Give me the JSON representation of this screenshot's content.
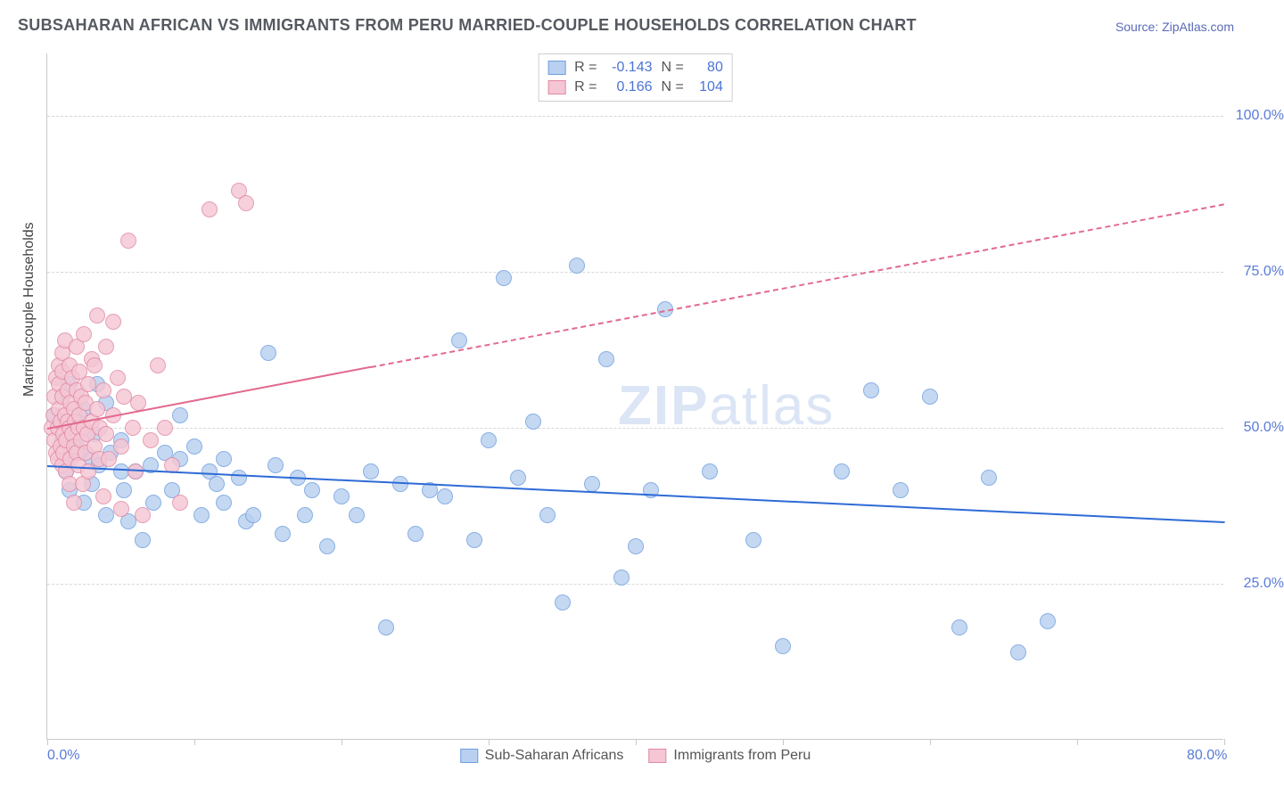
{
  "title": "SUBSAHARAN AFRICAN VS IMMIGRANTS FROM PERU MARRIED-COUPLE HOUSEHOLDS CORRELATION CHART",
  "source": "Source: ZipAtlas.com",
  "ylabel": "Married-couple Households",
  "watermark_a": "ZIP",
  "watermark_b": "atlas",
  "chart": {
    "type": "scatter",
    "background_color": "#ffffff",
    "grid_color": "#d8d8d8",
    "axis_color": "#c9c9c9",
    "xlim": [
      0,
      80
    ],
    "ylim": [
      0,
      110
    ],
    "x_ticks": [
      0,
      10,
      20,
      30,
      40,
      50,
      60,
      70,
      80
    ],
    "x_labels": {
      "0": "0.0%",
      "80": "80.0%"
    },
    "y_gridlines": [
      25,
      50,
      75,
      100
    ],
    "y_labels": {
      "25": "25.0%",
      "50": "50.0%",
      "75": "75.0%",
      "100": "100.0%"
    },
    "point_radius": 9,
    "title_fontsize": 18,
    "title_color": "#555960",
    "label_fontsize": 16,
    "tick_color": "#5a7bd8",
    "series": [
      {
        "name": "Sub-Saharan Africans",
        "fill": "#b9d0f0",
        "stroke": "#6f9fe0",
        "line_color": "#2e6bd6",
        "R": "-0.143",
        "N": "80",
        "trend": {
          "x1": 0,
          "y1": 44,
          "x2": 80,
          "y2": 35,
          "dashed": false
        },
        "points": [
          [
            0.5,
            52
          ],
          [
            1,
            48
          ],
          [
            1,
            50
          ],
          [
            1,
            55
          ],
          [
            1.3,
            45
          ],
          [
            1.3,
            43
          ],
          [
            1.5,
            57
          ],
          [
            1.5,
            40
          ],
          [
            2,
            47
          ],
          [
            2,
            51
          ],
          [
            2.2,
            46
          ],
          [
            2.5,
            53
          ],
          [
            2.5,
            38
          ],
          [
            3,
            45
          ],
          [
            3,
            41
          ],
          [
            3.2,
            49
          ],
          [
            3.4,
            57
          ],
          [
            3.5,
            44
          ],
          [
            4,
            54
          ],
          [
            4,
            36
          ],
          [
            4.3,
            46
          ],
          [
            5,
            43
          ],
          [
            5,
            48
          ],
          [
            5.2,
            40
          ],
          [
            5.5,
            35
          ],
          [
            6,
            43
          ],
          [
            6.5,
            32
          ],
          [
            7,
            44
          ],
          [
            7.2,
            38
          ],
          [
            8,
            46
          ],
          [
            8.5,
            40
          ],
          [
            9,
            45
          ],
          [
            9,
            52
          ],
          [
            10,
            47
          ],
          [
            10.5,
            36
          ],
          [
            11,
            43
          ],
          [
            11.5,
            41
          ],
          [
            12,
            45
          ],
          [
            12,
            38
          ],
          [
            13,
            42
          ],
          [
            13.5,
            35
          ],
          [
            14,
            36
          ],
          [
            15,
            62
          ],
          [
            15.5,
            44
          ],
          [
            16,
            33
          ],
          [
            17,
            42
          ],
          [
            17.5,
            36
          ],
          [
            18,
            40
          ],
          [
            19,
            31
          ],
          [
            20,
            39
          ],
          [
            21,
            36
          ],
          [
            22,
            43
          ],
          [
            23,
            18
          ],
          [
            24,
            41
          ],
          [
            25,
            33
          ],
          [
            26,
            40
          ],
          [
            27,
            39
          ],
          [
            28,
            64
          ],
          [
            29,
            32
          ],
          [
            30,
            48
          ],
          [
            31,
            74
          ],
          [
            32,
            42
          ],
          [
            33,
            51
          ],
          [
            34,
            36
          ],
          [
            35,
            22
          ],
          [
            36,
            76
          ],
          [
            37,
            41
          ],
          [
            38,
            61
          ],
          [
            39,
            26
          ],
          [
            40,
            31
          ],
          [
            41,
            40
          ],
          [
            42,
            69
          ],
          [
            45,
            43
          ],
          [
            48,
            32
          ],
          [
            50,
            15
          ],
          [
            54,
            43
          ],
          [
            56,
            56
          ],
          [
            58,
            40
          ],
          [
            60,
            55
          ],
          [
            62,
            18
          ],
          [
            64,
            42
          ],
          [
            66,
            14
          ],
          [
            68,
            19
          ]
        ]
      },
      {
        "name": "Immigrants from Peru",
        "fill": "#f5c6d4",
        "stroke": "#e08aa5",
        "line_color": "#e26a8e",
        "R": "0.166",
        "N": "104",
        "trend": {
          "x1": 0,
          "y1": 50,
          "x2": 80,
          "y2": 86,
          "dashed_from": 22
        },
        "points": [
          [
            0.3,
            50
          ],
          [
            0.4,
            52
          ],
          [
            0.5,
            48
          ],
          [
            0.5,
            55
          ],
          [
            0.6,
            46
          ],
          [
            0.6,
            58
          ],
          [
            0.7,
            45
          ],
          [
            0.7,
            50
          ],
          [
            0.8,
            53
          ],
          [
            0.8,
            57
          ],
          [
            0.8,
            60
          ],
          [
            0.9,
            47
          ],
          [
            0.9,
            51
          ],
          [
            1.0,
            44
          ],
          [
            1.0,
            55
          ],
          [
            1.0,
            59
          ],
          [
            1.0,
            62
          ],
          [
            1.1,
            46
          ],
          [
            1.1,
            49
          ],
          [
            1.2,
            52
          ],
          [
            1.2,
            64
          ],
          [
            1.3,
            48
          ],
          [
            1.3,
            43
          ],
          [
            1.4,
            51
          ],
          [
            1.4,
            56
          ],
          [
            1.5,
            41
          ],
          [
            1.5,
            60
          ],
          [
            1.5,
            50
          ],
          [
            1.6,
            54
          ],
          [
            1.6,
            45
          ],
          [
            1.7,
            58
          ],
          [
            1.7,
            49
          ],
          [
            1.8,
            53
          ],
          [
            1.8,
            47
          ],
          [
            1.8,
            38
          ],
          [
            1.9,
            51
          ],
          [
            2.0,
            46
          ],
          [
            2.0,
            56
          ],
          [
            2.0,
            63
          ],
          [
            2.1,
            44
          ],
          [
            2.1,
            50
          ],
          [
            2.2,
            59
          ],
          [
            2.2,
            52
          ],
          [
            2.3,
            48
          ],
          [
            2.3,
            55
          ],
          [
            2.4,
            41
          ],
          [
            2.5,
            65
          ],
          [
            2.5,
            50
          ],
          [
            2.6,
            46
          ],
          [
            2.6,
            54
          ],
          [
            2.7,
            49
          ],
          [
            2.8,
            57
          ],
          [
            2.8,
            43
          ],
          [
            3.0,
            51
          ],
          [
            3.0,
            61
          ],
          [
            3.2,
            60
          ],
          [
            3.2,
            47
          ],
          [
            3.4,
            53
          ],
          [
            3.4,
            68
          ],
          [
            3.5,
            45
          ],
          [
            3.6,
            50
          ],
          [
            3.8,
            56
          ],
          [
            3.8,
            39
          ],
          [
            4.0,
            49
          ],
          [
            4.0,
            63
          ],
          [
            4.2,
            45
          ],
          [
            4.5,
            67
          ],
          [
            4.5,
            52
          ],
          [
            4.8,
            58
          ],
          [
            5.0,
            47
          ],
          [
            5.0,
            37
          ],
          [
            5.2,
            55
          ],
          [
            5.5,
            80
          ],
          [
            5.8,
            50
          ],
          [
            6.0,
            43
          ],
          [
            6.2,
            54
          ],
          [
            6.5,
            36
          ],
          [
            7.0,
            48
          ],
          [
            7.5,
            60
          ],
          [
            8.0,
            50
          ],
          [
            8.5,
            44
          ],
          [
            9.0,
            38
          ],
          [
            11,
            85
          ],
          [
            13,
            88
          ],
          [
            13.5,
            86
          ]
        ]
      }
    ]
  },
  "legend_bottom": [
    {
      "label": "Sub-Saharan Africans",
      "fill": "#b9d0f0",
      "stroke": "#6f9fe0"
    },
    {
      "label": "Immigrants from Peru",
      "fill": "#f5c6d4",
      "stroke": "#e08aa5"
    }
  ]
}
